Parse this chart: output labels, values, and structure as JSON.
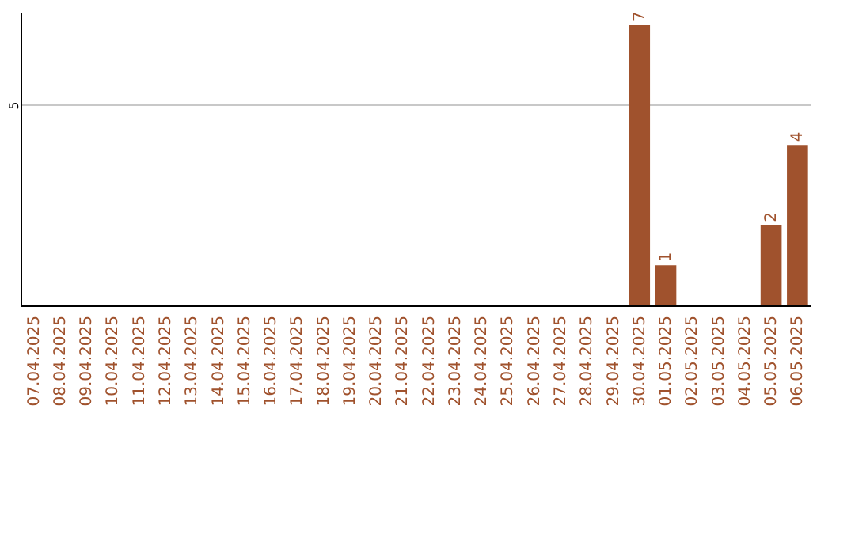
{
  "chart_data": {
    "type": "bar",
    "categories": [
      "07.04.2025",
      "08.04.2025",
      "09.04.2025",
      "10.04.2025",
      "11.04.2025",
      "12.04.2025",
      "13.04.2025",
      "14.04.2025",
      "15.04.2025",
      "16.04.2025",
      "17.04.2025",
      "18.04.2025",
      "19.04.2025",
      "20.04.2025",
      "21.04.2025",
      "22.04.2025",
      "23.04.2025",
      "24.04.2025",
      "25.04.2025",
      "26.04.2025",
      "27.04.2025",
      "28.04.2025",
      "29.04.2025",
      "30.04.2025",
      "01.05.2025",
      "02.05.2025",
      "03.05.2025",
      "04.05.2025",
      "05.05.2025",
      "06.05.2025"
    ],
    "values": [
      null,
      null,
      null,
      null,
      null,
      null,
      null,
      null,
      null,
      null,
      null,
      null,
      null,
      null,
      null,
      null,
      null,
      null,
      null,
      null,
      null,
      null,
      null,
      7,
      1,
      null,
      null,
      null,
      2,
      4
    ],
    "color": "#a0522d",
    "ylim": [
      0,
      7.3
    ],
    "yticks": [
      5
    ],
    "grid": "y",
    "data_labels": true
  }
}
